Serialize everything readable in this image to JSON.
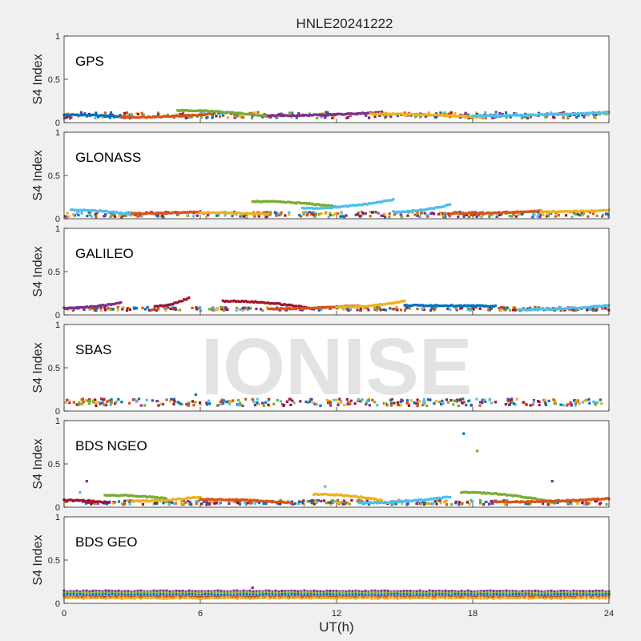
{
  "figure": {
    "title": "HNLE20241222",
    "watermark": "IONISE",
    "xlabel": "UT(h)",
    "xlim": [
      0,
      24
    ],
    "x_ticks": [
      "0",
      "6",
      "12",
      "18",
      "24"
    ],
    "colors": [
      "#0072BD",
      "#D95319",
      "#EDB120",
      "#7E2F8E",
      "#77AC30",
      "#4DBEEE",
      "#A2142F"
    ],
    "background": "#f0f0f0"
  },
  "chart_data": [
    {
      "type": "scatter",
      "panel": "GPS",
      "ylabel": "S4 Index",
      "ylim": [
        0,
        1
      ],
      "y_ticks": [
        "0",
        "0.5",
        "1"
      ],
      "baseline": [
        0.05,
        0.12
      ],
      "arcs": [
        {
          "x": [
            0,
            3
          ],
          "y_start": 0.09,
          "y_end": 0.06,
          "color": 0
        },
        {
          "x": [
            2.5,
            6.5
          ],
          "y_start": 0.06,
          "y_end": 0.1,
          "color": 1
        },
        {
          "x": [
            5,
            9
          ],
          "y_start": 0.14,
          "y_end": 0.07,
          "color": 4
        },
        {
          "x": [
            9,
            14
          ],
          "y_start": 0.08,
          "y_end": 0.12,
          "color": 3
        },
        {
          "x": [
            13.5,
            18.5
          ],
          "y_start": 0.1,
          "y_end": 0.06,
          "color": 2
        },
        {
          "x": [
            18,
            24
          ],
          "y_start": 0.08,
          "y_end": 0.12,
          "color": 5
        }
      ],
      "outliers": []
    },
    {
      "type": "scatter",
      "panel": "GLONASS",
      "ylabel": "S4 Index",
      "ylim": [
        0,
        1
      ],
      "y_ticks": [
        "0",
        "0.5",
        "1"
      ],
      "baseline": [
        0.02,
        0.08
      ],
      "arcs": [
        {
          "x": [
            0.3,
            3
          ],
          "y_start": 0.1,
          "y_end": 0.05,
          "color": 5
        },
        {
          "x": [
            3,
            6
          ],
          "y_start": 0.06,
          "y_end": 0.08,
          "color": 1
        },
        {
          "x": [
            6,
            9
          ],
          "y_start": 0.07,
          "y_end": 0.05,
          "color": 2
        },
        {
          "x": [
            8.3,
            12
          ],
          "y_start": 0.2,
          "y_end": 0.14,
          "color": 4
        },
        {
          "x": [
            10.5,
            14.5
          ],
          "y_start": 0.12,
          "y_end": 0.22,
          "color": 5
        },
        {
          "x": [
            14.5,
            17
          ],
          "y_start": 0.08,
          "y_end": 0.16,
          "color": 5
        },
        {
          "x": [
            17,
            21
          ],
          "y_start": 0.06,
          "y_end": 0.09,
          "color": 1
        },
        {
          "x": [
            21,
            24
          ],
          "y_start": 0.08,
          "y_end": 0.1,
          "color": 2
        }
      ],
      "outliers": []
    },
    {
      "type": "scatter",
      "panel": "GALILEO",
      "ylabel": "S4 Index",
      "ylim": [
        0,
        1
      ],
      "y_ticks": [
        "0",
        "0.5",
        "1"
      ],
      "baseline": [
        0.05,
        0.09
      ],
      "arcs": [
        {
          "x": [
            0,
            2.5
          ],
          "y_start": 0.08,
          "y_end": 0.14,
          "color": 3
        },
        {
          "x": [
            4,
            5.5
          ],
          "y_start": 0.1,
          "y_end": 0.2,
          "color": 6
        },
        {
          "x": [
            7,
            11
          ],
          "y_start": 0.16,
          "y_end": 0.07,
          "color": 6
        },
        {
          "x": [
            9,
            13
          ],
          "y_start": 0.07,
          "y_end": 0.11,
          "color": 1
        },
        {
          "x": [
            12,
            15
          ],
          "y_start": 0.09,
          "y_end": 0.16,
          "color": 2
        },
        {
          "x": [
            15,
            19
          ],
          "y_start": 0.11,
          "y_end": 0.1,
          "color": 0
        },
        {
          "x": [
            20,
            24
          ],
          "y_start": 0.06,
          "y_end": 0.11,
          "color": 5
        }
      ],
      "outliers": []
    },
    {
      "type": "scatter",
      "panel": "SBAS",
      "ylabel": "S4 Index",
      "ylim": [
        0,
        1
      ],
      "y_ticks": [
        "0",
        "0.5",
        "1"
      ],
      "baseline": [
        0.06,
        0.14
      ],
      "arcs": [],
      "outliers": [
        {
          "x": 5.8,
          "y": 0.19,
          "color": 0
        }
      ]
    },
    {
      "type": "scatter",
      "panel": "BDS NGEO",
      "ylabel": "S4 Index",
      "ylim": [
        0,
        1
      ],
      "y_ticks": [
        "0",
        "0.5",
        "1"
      ],
      "baseline": [
        0.03,
        0.08
      ],
      "arcs": [
        {
          "x": [
            0,
            2
          ],
          "y_start": 0.08,
          "y_end": 0.05,
          "color": 6
        },
        {
          "x": [
            1.8,
            4.5
          ],
          "y_start": 0.14,
          "y_end": 0.1,
          "color": 4
        },
        {
          "x": [
            3,
            6
          ],
          "y_start": 0.07,
          "y_end": 0.12,
          "color": 2
        },
        {
          "x": [
            6,
            10
          ],
          "y_start": 0.09,
          "y_end": 0.05,
          "color": 1
        },
        {
          "x": [
            11,
            14
          ],
          "y_start": 0.15,
          "y_end": 0.08,
          "color": 2
        },
        {
          "x": [
            13,
            17
          ],
          "y_start": 0.05,
          "y_end": 0.12,
          "color": 5
        },
        {
          "x": [
            17.5,
            21.5
          ],
          "y_start": 0.17,
          "y_end": 0.06,
          "color": 4
        },
        {
          "x": [
            19,
            24
          ],
          "y_start": 0.06,
          "y_end": 0.1,
          "color": 1
        }
      ],
      "outliers": [
        {
          "x": 0.7,
          "y": 0.17,
          "color": 5
        },
        {
          "x": 1.0,
          "y": 0.3,
          "color": 3
        },
        {
          "x": 11.5,
          "y": 0.24,
          "color": 5
        },
        {
          "x": 17.6,
          "y": 0.85,
          "color": 0
        },
        {
          "x": 18.2,
          "y": 0.65,
          "color": 4
        },
        {
          "x": 21.5,
          "y": 0.3,
          "color": 3
        }
      ]
    },
    {
      "type": "scatter",
      "panel": "BDS GEO",
      "ylabel": "S4 Index",
      "ylim": [
        0,
        1
      ],
      "y_ticks": [
        "0",
        "0.5",
        "1"
      ],
      "baseline": [
        0.07,
        0.07
      ],
      "arcs": [],
      "outliers": [
        {
          "x": 8.3,
          "y": 0.18,
          "color": 3
        }
      ],
      "geo_levels": [
        {
          "y": 0.14,
          "color": 3
        },
        {
          "y": 0.12,
          "color": 4
        },
        {
          "y": 0.1,
          "color": 0
        },
        {
          "y": 0.08,
          "color": 1
        },
        {
          "y": 0.06,
          "color": 2
        }
      ]
    }
  ]
}
